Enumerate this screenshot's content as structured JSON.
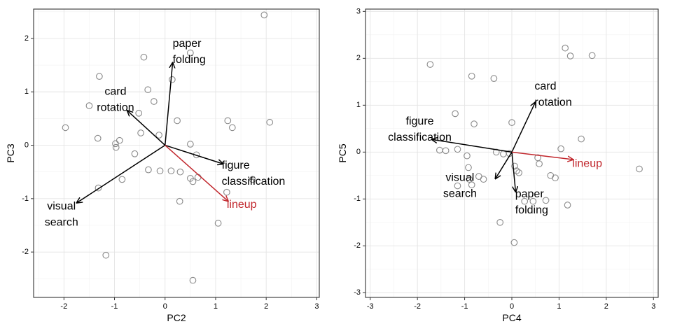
{
  "chart_data": [
    {
      "type": "scatter",
      "title": "",
      "xlabel": "PC2",
      "ylabel": "PC3",
      "xlim": [
        -2.6,
        3.05
      ],
      "ylim": [
        -2.85,
        2.55
      ],
      "xticks": [
        -2,
        -1,
        0,
        1,
        2,
        3
      ],
      "yticks": [
        -2,
        -1,
        0,
        1,
        2
      ],
      "grid": true,
      "points": [
        {
          "x": 1.96,
          "y": 2.44
        },
        {
          "x": 0.5,
          "y": 1.73
        },
        {
          "x": -0.42,
          "y": 1.65
        },
        {
          "x": 0.14,
          "y": 1.23
        },
        {
          "x": -1.3,
          "y": 1.29
        },
        {
          "x": -0.34,
          "y": 1.04
        },
        {
          "x": -0.22,
          "y": 0.82
        },
        {
          "x": -1.5,
          "y": 0.74
        },
        {
          "x": -0.52,
          "y": 0.6
        },
        {
          "x": 0.24,
          "y": 0.46
        },
        {
          "x": 1.24,
          "y": 0.46
        },
        {
          "x": 2.07,
          "y": 0.43
        },
        {
          "x": 1.33,
          "y": 0.33
        },
        {
          "x": -1.97,
          "y": 0.33
        },
        {
          "x": -0.48,
          "y": 0.23
        },
        {
          "x": -0.12,
          "y": 0.19
        },
        {
          "x": -1.33,
          "y": 0.13
        },
        {
          "x": -0.9,
          "y": 0.09
        },
        {
          "x": -0.98,
          "y": 0.03
        },
        {
          "x": -0.97,
          "y": -0.04
        },
        {
          "x": 0.5,
          "y": 0.02
        },
        {
          "x": -0.6,
          "y": -0.16
        },
        {
          "x": 0.62,
          "y": -0.18
        },
        {
          "x": -0.33,
          "y": -0.46
        },
        {
          "x": -0.1,
          "y": -0.48
        },
        {
          "x": 0.12,
          "y": -0.48
        },
        {
          "x": 0.3,
          "y": -0.5
        },
        {
          "x": 0.5,
          "y": -0.62
        },
        {
          "x": 0.55,
          "y": -0.68
        },
        {
          "x": 0.65,
          "y": -0.6
        },
        {
          "x": -0.85,
          "y": -0.64
        },
        {
          "x": -1.32,
          "y": -0.8
        },
        {
          "x": 1.73,
          "y": -0.64
        },
        {
          "x": 1.22,
          "y": -0.88
        },
        {
          "x": 0.29,
          "y": -1.05
        },
        {
          "x": 1.05,
          "y": -1.46
        },
        {
          "x": -1.17,
          "y": -2.06
        },
        {
          "x": 0.55,
          "y": -2.53
        }
      ],
      "arrows": [
        {
          "label_lines": [
            "paper",
            "folding"
          ],
          "x": 0.15,
          "y": 1.55,
          "color": "#000000",
          "anchor": "start",
          "label_x": 0.15,
          "label_y": 1.9
        },
        {
          "label_lines": [
            "card",
            "rotation"
          ],
          "x": -0.75,
          "y": 0.65,
          "color": "#000000",
          "anchor": "middle",
          "label_x": -0.98,
          "label_y": 1.0
        },
        {
          "label_lines": [
            "figure",
            "classification"
          ],
          "x": 1.15,
          "y": -0.35,
          "color": "#000000",
          "anchor": "start",
          "label_x": 1.12,
          "label_y": -0.38
        },
        {
          "label_lines": [
            "visual",
            "search"
          ],
          "x": -1.75,
          "y": -1.08,
          "color": "#000000",
          "anchor": "middle",
          "label_x": -2.05,
          "label_y": -1.15
        },
        {
          "label_lines": [
            "lineup"
          ],
          "x": 1.25,
          "y": -1.05,
          "color": "#c1272d",
          "anchor": "start",
          "label_x": 1.22,
          "label_y": -1.12
        }
      ]
    },
    {
      "type": "scatter",
      "title": "",
      "xlabel": "PC4",
      "ylabel": "PC5",
      "xlim": [
        -3.1,
        3.1
      ],
      "ylim": [
        -3.1,
        3.05
      ],
      "xticks": [
        -3,
        -2,
        -1,
        0,
        1,
        2,
        3
      ],
      "yticks": [
        -3,
        -2,
        -1,
        0,
        1,
        2,
        3
      ],
      "grid": true,
      "points": [
        {
          "x": 1.13,
          "y": 2.22
        },
        {
          "x": 1.24,
          "y": 2.05
        },
        {
          "x": 1.7,
          "y": 2.06
        },
        {
          "x": -1.73,
          "y": 1.87
        },
        {
          "x": -0.85,
          "y": 1.62
        },
        {
          "x": -0.38,
          "y": 1.57
        },
        {
          "x": -1.2,
          "y": 0.82
        },
        {
          "x": -0.8,
          "y": 0.6
        },
        {
          "x": 0.0,
          "y": 0.63
        },
        {
          "x": 1.47,
          "y": 0.28
        },
        {
          "x": 1.04,
          "y": 0.07
        },
        {
          "x": -1.53,
          "y": 0.04
        },
        {
          "x": -1.4,
          "y": 0.03
        },
        {
          "x": -1.15,
          "y": 0.06
        },
        {
          "x": -0.33,
          "y": 0.0
        },
        {
          "x": -0.18,
          "y": -0.04
        },
        {
          "x": -0.05,
          "y": -0.03
        },
        {
          "x": -0.95,
          "y": -0.08
        },
        {
          "x": 0.55,
          "y": -0.12
        },
        {
          "x": 0.58,
          "y": -0.25
        },
        {
          "x": 0.06,
          "y": -0.3
        },
        {
          "x": 0.1,
          "y": -0.4
        },
        {
          "x": 0.15,
          "y": -0.44
        },
        {
          "x": -0.92,
          "y": -0.33
        },
        {
          "x": -0.9,
          "y": -0.58
        },
        {
          "x": -0.7,
          "y": -0.52
        },
        {
          "x": -0.6,
          "y": -0.58
        },
        {
          "x": 0.82,
          "y": -0.5
        },
        {
          "x": 0.92,
          "y": -0.55
        },
        {
          "x": -0.85,
          "y": -0.7
        },
        {
          "x": -1.15,
          "y": -0.72
        },
        {
          "x": 2.7,
          "y": -0.36
        },
        {
          "x": 0.27,
          "y": -1.05
        },
        {
          "x": 0.45,
          "y": -1.05
        },
        {
          "x": 0.72,
          "y": -1.03
        },
        {
          "x": 1.18,
          "y": -1.13
        },
        {
          "x": -0.25,
          "y": -1.5
        },
        {
          "x": 0.05,
          "y": -1.93
        }
      ],
      "arrows": [
        {
          "label_lines": [
            "card",
            "rotation"
          ],
          "x": 0.5,
          "y": 1.07,
          "color": "#000000",
          "anchor": "start",
          "label_x": 0.48,
          "label_y": 1.4
        },
        {
          "label_lines": [
            "figure",
            "classification"
          ],
          "x": -1.7,
          "y": 0.27,
          "color": "#000000",
          "anchor": "middle",
          "label_x": -1.95,
          "label_y": 0.65
        },
        {
          "label_lines": [
            "visual",
            "search"
          ],
          "x": -0.35,
          "y": -0.57,
          "color": "#000000",
          "anchor": "middle",
          "label_x": -1.1,
          "label_y": -0.55
        },
        {
          "label_lines": [
            "paper",
            "folding"
          ],
          "x": 0.08,
          "y": -0.85,
          "color": "#000000",
          "anchor": "start",
          "label_x": 0.07,
          "label_y": -0.9
        },
        {
          "label_lines": [
            "lineup"
          ],
          "x": 1.3,
          "y": -0.16,
          "color": "#c1272d",
          "anchor": "start",
          "label_x": 1.28,
          "label_y": -0.25
        }
      ]
    }
  ]
}
